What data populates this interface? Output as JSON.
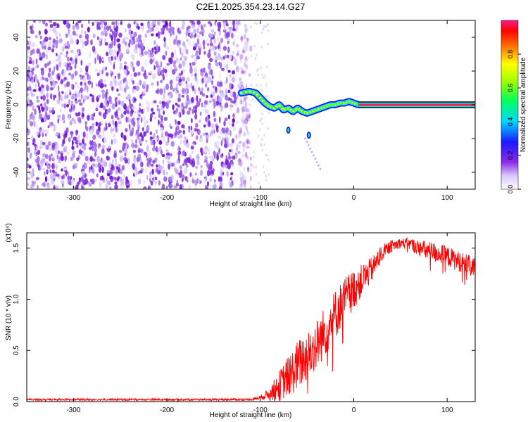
{
  "title": "C2E1.2025.354.23.14.G27",
  "chart_data": [
    {
      "type": "heatmap",
      "xlabel": "Height of straight line (km)",
      "ylabel": "Frequency (Hz)",
      "xlim": [
        -350,
        130
      ],
      "ylim": [
        -50,
        50
      ],
      "xticks": [
        -300,
        -200,
        -100,
        0,
        100
      ],
      "yticks": [
        -40,
        -20,
        0,
        20,
        40
      ],
      "colorbar": {
        "label": "Normalized spectral amplitude",
        "range": [
          0,
          1
        ],
        "ticks": [
          "0.0",
          "0.2",
          "0.4",
          "0.6",
          "0.8"
        ],
        "colormap": [
          "#ffffff",
          "#8a2be2",
          "#1a1aff",
          "#00ffff",
          "#00ff00",
          "#ffff00",
          "#ff0000",
          "#ff1a8c"
        ]
      },
      "noise_region": {
        "x_from": -350,
        "x_to": -110,
        "amplitude": 0.15
      },
      "signal_track": {
        "x": [
          -120,
          -112,
          -105,
          -100,
          -95,
          -90,
          -85,
          -80,
          -75,
          -70,
          -65,
          -60,
          -55,
          -50,
          -45,
          -40,
          -35,
          -30,
          -25,
          -20,
          -15,
          -10,
          -5,
          0,
          5,
          130
        ],
        "y": [
          7,
          8,
          7,
          4,
          1,
          -1,
          -2,
          0,
          -3,
          -2,
          -4,
          -2,
          -4,
          -5,
          -4,
          -3,
          -2,
          -1,
          0,
          0,
          1,
          1,
          2,
          1,
          0,
          0
        ],
        "amplitude_from_x0": 0.95
      },
      "outliers": [
        {
          "x": -48,
          "y": -18
        },
        {
          "x": -70,
          "y": -15
        }
      ]
    },
    {
      "type": "line",
      "xlabel": "Height of straight line (km)",
      "ylabel": "SNR (10 * v/v)",
      "y_multiplier": "(x10⁴)",
      "xlim": [
        -350,
        130
      ],
      "ylim": [
        0,
        1.65
      ],
      "xticks": [
        -300,
        -200,
        -100,
        0,
        100
      ],
      "yticks": [
        "0.0",
        "0.5",
        "1.0",
        "1.5"
      ],
      "series": [
        {
          "color": "#ff0000",
          "x": [
            -350,
            -300,
            -250,
            -200,
            -150,
            -110,
            -100,
            -90,
            -80,
            -70,
            -60,
            -50,
            -40,
            -30,
            -20,
            -10,
            0,
            10,
            20,
            30,
            40,
            50,
            60,
            70,
            80,
            90,
            100,
            110,
            120,
            130
          ],
          "y": [
            0.02,
            0.02,
            0.02,
            0.02,
            0.02,
            0.02,
            0.04,
            0.08,
            0.15,
            0.25,
            0.35,
            0.45,
            0.55,
            0.7,
            0.85,
            1.0,
            1.1,
            1.2,
            1.3,
            1.45,
            1.52,
            1.55,
            1.54,
            1.5,
            1.47,
            1.45,
            1.42,
            1.38,
            1.35,
            1.3
          ],
          "noise": [
            0.01,
            0.01,
            0.01,
            0.01,
            0.01,
            0.01,
            0.02,
            0.06,
            0.15,
            0.2,
            0.25,
            0.25,
            0.25,
            0.25,
            0.25,
            0.22,
            0.2,
            0.15,
            0.12,
            0.08,
            0.06,
            0.05,
            0.06,
            0.08,
            0.1,
            0.1,
            0.1,
            0.1,
            0.1,
            0.1
          ]
        }
      ]
    }
  ]
}
